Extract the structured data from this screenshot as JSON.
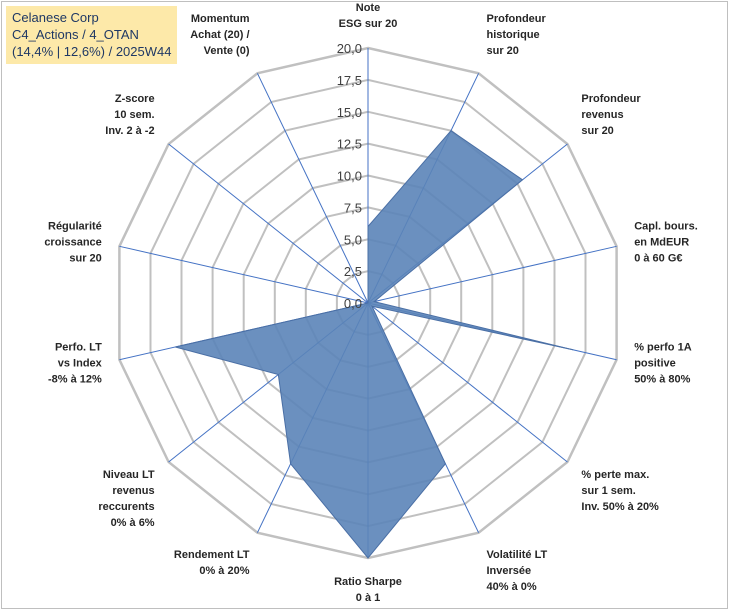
{
  "title_lines": [
    "Celanese Corp",
    "C4_Actions / 4_OTAN",
    "(14,4% | 12,6%) / 2025W44"
  ],
  "colors": {
    "grid": "#c0c0c0",
    "spoke": "#4472c4",
    "fill": "#5b84b8",
    "stroke": "#4a6fa5",
    "title_bg": "#fde9a9",
    "title_text": "#1f3864"
  },
  "chart_data": {
    "type": "radar",
    "ylim": [
      0,
      20
    ],
    "grid": true,
    "ticks": [
      "0,0",
      "2,5",
      "5,0",
      "7,5",
      "10,0",
      "12,5",
      "15,0",
      "17,5",
      "20,0"
    ],
    "categories": [
      [
        "Note",
        "ESG sur 20"
      ],
      [
        "Profondeur",
        "historique",
        "sur 20"
      ],
      [
        "Profondeur",
        "revenus",
        "sur 20"
      ],
      [
        "Capl. bours.",
        "en MdEUR",
        "0 à 60 G€"
      ],
      [
        "% perfo 1A",
        "positive",
        "50% à 80%"
      ],
      [
        "% perte max.",
        "sur 1 sem.",
        "Inv. 50% à 20%"
      ],
      [
        "Volatilité LT",
        "Inversée",
        "40% à 0%"
      ],
      [
        "Ratio Sharpe",
        "0 à 1"
      ],
      [
        "Rendement LT",
        "0% à 20%"
      ],
      [
        "Niveau LT",
        "revenus",
        "reccurents",
        "0% à 6%"
      ],
      [
        "Perfo. LT",
        "vs Index",
        "-8% à 12%"
      ],
      [
        "Régularité",
        "croissance",
        "sur 20"
      ],
      [
        "Z-score",
        "10 sem.",
        "Inv. 2 à -2"
      ],
      [
        "Momentum",
        "Achat (20) /",
        "Vente (0)"
      ]
    ],
    "values": [
      6.0,
      15.0,
      15.5,
      0.5,
      16.5,
      0.4,
      14.0,
      20.0,
      14.0,
      9.0,
      15.5,
      0,
      0,
      0
    ]
  }
}
